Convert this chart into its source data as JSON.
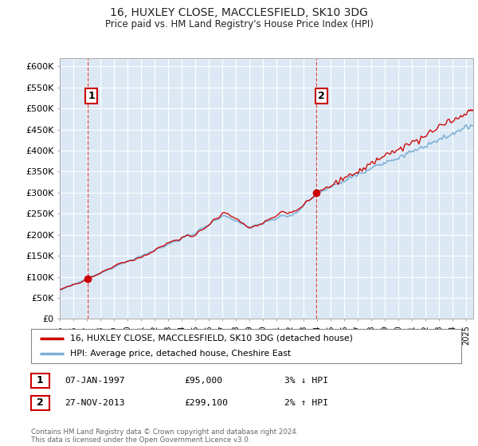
{
  "title": "16, HUXLEY CLOSE, MACCLESFIELD, SK10 3DG",
  "subtitle": "Price paid vs. HM Land Registry's House Price Index (HPI)",
  "ylim": [
    0,
    620000
  ],
  "yticks": [
    0,
    50000,
    100000,
    150000,
    200000,
    250000,
    300000,
    350000,
    400000,
    450000,
    500000,
    550000,
    600000
  ],
  "ytick_labels": [
    "£0",
    "£50K",
    "£100K",
    "£150K",
    "£200K",
    "£250K",
    "£300K",
    "£350K",
    "£400K",
    "£450K",
    "£500K",
    "£550K",
    "£600K"
  ],
  "sale1_year": 1997.05,
  "sale1_price": 95000,
  "sale1_label": "1",
  "sale2_year": 2013.9,
  "sale2_price": 299100,
  "sale2_label": "2",
  "sale1_date": "07-JAN-1997",
  "sale1_hpi": "3% ↓ HPI",
  "sale2_date": "27-NOV-2013",
  "sale2_hpi": "2% ↑ HPI",
  "legend_line1": "16, HUXLEY CLOSE, MACCLESFIELD, SK10 3DG (detached house)",
  "legend_line2": "HPI: Average price, detached house, Cheshire East",
  "footer": "Contains HM Land Registry data © Crown copyright and database right 2024.\nThis data is licensed under the Open Government Licence v3.0.",
  "line_color_red": "#cc0000",
  "line_color_blue": "#7db0d5",
  "vline_color": "#cc0000",
  "background_color": "#ffffff",
  "chart_bg_color": "#dce9f5",
  "grid_color": "#ffffff"
}
